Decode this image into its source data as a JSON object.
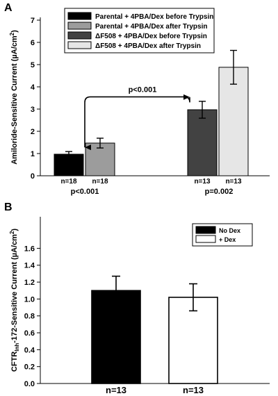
{
  "chart_data": [
    {
      "panel_label": "A",
      "type": "bar",
      "ylabel_main": "Amiloride-Sensitive Current (µA/cm",
      "ylabel_sup": "2",
      "ylabel_end": ")",
      "ylim": [
        0,
        7
      ],
      "yticks": [
        0,
        1,
        2,
        3,
        4,
        5,
        6,
        7
      ],
      "legend_placement": "top-center",
      "series": [
        {
          "name": "Parental + 4PBA/Dex before Trypsin",
          "value": 0.97,
          "error": 0.12,
          "color": "#000000",
          "n_label": "n=18"
        },
        {
          "name": "Parental + 4PBA/Dex after Trypsin",
          "value": 1.47,
          "error": 0.22,
          "color": "#9c9c9c",
          "n_label": "n=18"
        },
        {
          "name": "ΔF508 + 4PBA/Dex before Trypsin",
          "value": 2.97,
          "error": 0.38,
          "color": "#424242",
          "n_label": "n=13"
        },
        {
          "name": "ΔF508 + 4PBA/Dex after Trypsin",
          "value": 4.88,
          "error": 0.76,
          "color": "#e6e6e6",
          "n_label": "n=13"
        }
      ],
      "group_pvalues": [
        "p<0.001",
        "p=0.002"
      ],
      "comparison": {
        "label": "p<0.001",
        "from_bar": 2,
        "to_bar": 0,
        "level": 3.55
      }
    },
    {
      "panel_label": "B",
      "type": "bar",
      "ylabel_main": "CFTR",
      "ylabel_sub": "Inh",
      "ylabel_end": "-172-Sensitive Current (µA/cm",
      "ylabel_sup": "2",
      "ylabel_close": ")",
      "ylim": [
        0,
        1.8
      ],
      "yticks": [
        "0.0",
        "0.2",
        "0.4",
        "0.6",
        "0.8",
        "1.0",
        "1.2",
        "1.4",
        "1.6"
      ],
      "legend_placement": "top-right",
      "series": [
        {
          "name": "No Dex",
          "value": 1.1,
          "error": 0.17,
          "color": "#000000",
          "n_label": "n=13"
        },
        {
          "name": "+ Dex",
          "value": 1.02,
          "error": 0.16,
          "color": "#ffffff",
          "n_label": "n=13"
        }
      ]
    }
  ]
}
